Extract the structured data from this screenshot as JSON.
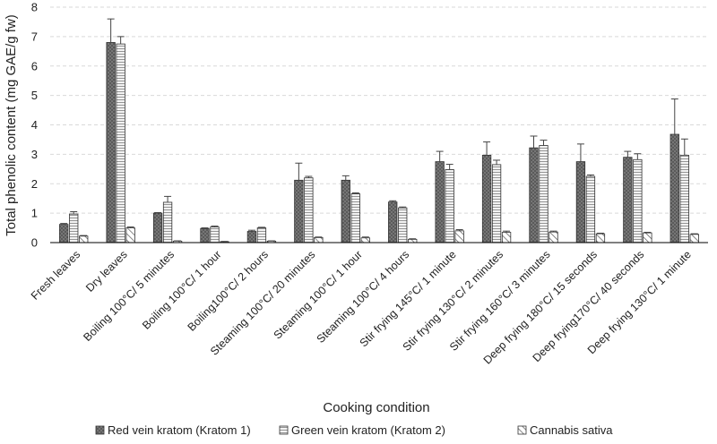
{
  "chart_data": {
    "type": "bar",
    "xlabel": "Cooking condition",
    "ylabel": "Total phenolic content (mg GAE/g fw)",
    "ylim": [
      0,
      8
    ],
    "yticks": [
      0,
      1,
      2,
      3,
      4,
      5,
      6,
      7,
      8
    ],
    "grid": true,
    "legend_position": "bottom",
    "categories": [
      "Fresh leaves",
      "Dry leaves",
      "Boiling 100°C/ 5 minutes",
      "Boiling 100°C/ 1 hour",
      "Boiling100°C/ 2 hours",
      "Steaming 100°C/ 20 minutes",
      "Steaming 100°C/ 1 hour",
      "Steaming 100°C/ 4 hours",
      "Stir frying  145°C/ 1 minute",
      "Stir frying  130°C/ 2 minutes",
      "Stir frying  160°C/ 3 minutes",
      "Deep frying 180°C/ 15 seconds",
      "Deep frying170°C/ 40 seconds",
      "Deep frying 130°C/ 1 minute"
    ],
    "series": [
      {
        "name": "Red vein kratom (Kratom 1)",
        "pattern": "dotted-dark",
        "color": "#5a5a5a",
        "values": [
          0.62,
          6.8,
          1.0,
          0.48,
          0.38,
          2.12,
          2.12,
          1.38,
          2.75,
          2.97,
          3.22,
          2.75,
          2.9,
          3.68
        ],
        "errors": [
          0.03,
          0.8,
          0.02,
          0.02,
          0.04,
          0.58,
          0.15,
          0.04,
          0.35,
          0.45,
          0.4,
          0.6,
          0.2,
          1.2
        ]
      },
      {
        "name": "Green vein kratom (Kratom 2)",
        "pattern": "horizontal-lines",
        "color": "#e6e6e6",
        "values": [
          0.97,
          6.75,
          1.37,
          0.53,
          0.5,
          2.2,
          1.66,
          1.18,
          2.48,
          2.65,
          3.3,
          2.25,
          2.82,
          2.97
        ],
        "errors": [
          0.08,
          0.25,
          0.2,
          0.03,
          0.02,
          0.05,
          0.03,
          0.03,
          0.18,
          0.15,
          0.18,
          0.05,
          0.2,
          0.55
        ]
      },
      {
        "name": "Cannabis sativa",
        "pattern": "diagonal-lines",
        "color": "#ffffff",
        "values": [
          0.22,
          0.5,
          0.05,
          0.03,
          0.05,
          0.17,
          0.16,
          0.11,
          0.4,
          0.35,
          0.36,
          0.3,
          0.33,
          0.28
        ],
        "errors": [
          0.02,
          0.03,
          0.01,
          0.01,
          0.01,
          0.02,
          0.03,
          0.02,
          0.04,
          0.04,
          0.03,
          0.02,
          0.02,
          0.02
        ]
      }
    ]
  }
}
